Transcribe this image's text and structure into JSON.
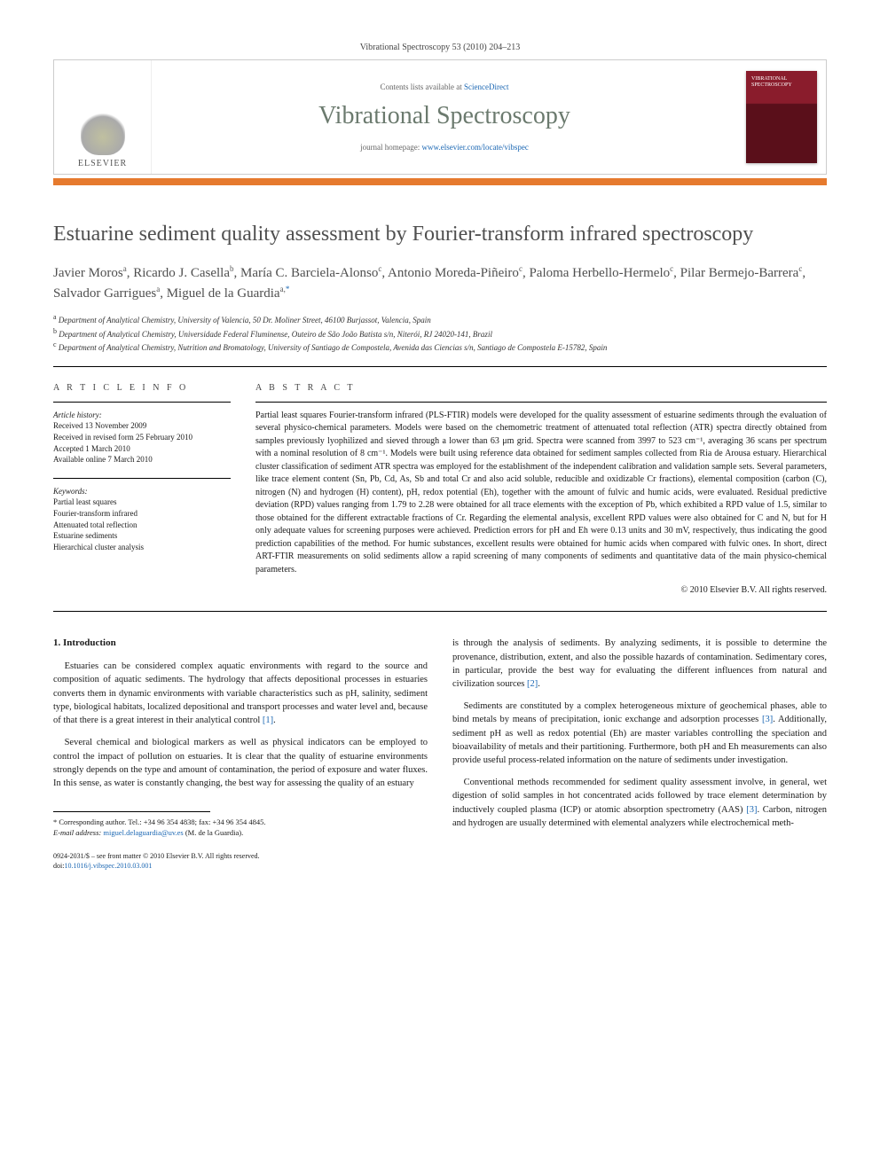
{
  "journal_header": "Vibrational Spectroscopy 53 (2010) 204–213",
  "masthead": {
    "elsevier_label": "ELSEVIER",
    "contents_prefix": "Contents lists available at ",
    "contents_link": "ScienceDirect",
    "journal_title": "Vibrational Spectroscopy",
    "homepage_prefix": "journal homepage: ",
    "homepage_link": "www.elsevier.com/locate/vibspec",
    "cover_text": "VIBRATIONAL SPECTROSCOPY"
  },
  "article_title": "Estuarine sediment quality assessment by Fourier-transform infrared spectroscopy",
  "authors_html": "Javier Moros<sup>a</sup>, Ricardo J. Casella<sup>b</sup>, María C. Barciela-Alonso<sup>c</sup>, Antonio Moreda-Piñeiro<sup>c</sup>, Paloma Herbello-Hermelo<sup>c</sup>, Pilar Bermejo-Barrera<sup>c</sup>, Salvador Garrigues<sup>a</sup>, Miguel de la Guardia<sup>a,</sup><sup class=\"corr\">*</sup>",
  "affiliations": {
    "a": "Department of Analytical Chemistry, University of Valencia, 50 Dr. Moliner Street, 46100 Burjassot, Valencia, Spain",
    "b": "Department of Analytical Chemistry, Universidade Federal Fluminense, Outeiro de São João Batista s/n, Niterói, RJ 24020-141, Brazil",
    "c": "Department of Analytical Chemistry, Nutrition and Bromatology, University of Santiago de Compostela, Avenida das Ciencias s/n, Santiago de Compostela E-15782, Spain"
  },
  "article_info": {
    "heading": "A R T I C L E   I N F O",
    "history_label": "Article history:",
    "history": [
      "Received 13 November 2009",
      "Received in revised form 25 February 2010",
      "Accepted 1 March 2010",
      "Available online 7 March 2010"
    ],
    "keywords_label": "Keywords:",
    "keywords": [
      "Partial least squares",
      "Fourier-transform infrared",
      "Attenuated total reflection",
      "Estuarine sediments",
      "Hierarchical cluster analysis"
    ]
  },
  "abstract": {
    "heading": "A B S T R A C T",
    "text": "Partial least squares Fourier-transform infrared (PLS-FTIR) models were developed for the quality assessment of estuarine sediments through the evaluation of several physico-chemical parameters. Models were based on the chemometric treatment of attenuated total reflection (ATR) spectra directly obtained from samples previously lyophilized and sieved through a lower than 63 μm grid. Spectra were scanned from 3997 to 523 cm⁻¹, averaging 36 scans per spectrum with a nominal resolution of 8 cm⁻¹. Models were built using reference data obtained for sediment samples collected from Ria de Arousa estuary. Hierarchical cluster classification of sediment ATR spectra was employed for the establishment of the independent calibration and validation sample sets. Several parameters, like trace element content (Sn, Pb, Cd, As, Sb and total Cr and also acid soluble, reducible and oxidizable Cr fractions), elemental composition (carbon (C), nitrogen (N) and hydrogen (H) content), pH, redox potential (Eh), together with the amount of fulvic and humic acids, were evaluated. Residual predictive deviation (RPD) values ranging from 1.79 to 2.28 were obtained for all trace elements with the exception of Pb, which exhibited a RPD value of 1.5, similar to those obtained for the different extractable fractions of Cr. Regarding the elemental analysis, excellent RPD values were also obtained for C and N, but for H only adequate values for screening purposes were achieved. Prediction errors for pH and Eh were 0.13 units and 30 mV, respectively, thus indicating the good prediction capabilities of the method. For humic substances, excellent results were obtained for humic acids when compared with fulvic ones. In short, direct ART-FTIR measurements on solid sediments allow a rapid screening of many components of sediments and quantitative data of the main physico-chemical parameters."
  },
  "copyright": "© 2010 Elsevier B.V. All rights reserved.",
  "intro": {
    "heading": "1. Introduction",
    "p1": "Estuaries can be considered complex aquatic environments with regard to the source and composition of aquatic sediments. The hydrology that affects depositional processes in estuaries converts them in dynamic environments with variable characteristics such as pH, salinity, sediment type, biological habitats, localized depositional and transport processes and water level and, because of that there is a great interest in their analytical control ",
    "p1_ref": "[1]",
    "p1_tail": ".",
    "p2": "Several chemical and biological markers as well as physical indicators can be employed to control the impact of pollution on estuaries. It is clear that the quality of estuarine environments strongly depends on the type and amount of contamination, the period of exposure and water fluxes. In this sense, as water is constantly changing, the best way for assessing the quality of an estuary",
    "p3": "is through the analysis of sediments. By analyzing sediments, it is possible to determine the provenance, distribution, extent, and also the possible hazards of contamination. Sedimentary cores, in particular, provide the best way for evaluating the different influences from natural and civilization sources ",
    "p3_ref": "[2]",
    "p3_tail": ".",
    "p4": "Sediments are constituted by a complex heterogeneous mixture of geochemical phases, able to bind metals by means of precipitation, ionic exchange and adsorption processes ",
    "p4_ref": "[3]",
    "p4_tail": ". Additionally, sediment pH as well as redox potential (Eh) are master variables controlling the speciation and bioavailability of metals and their partitioning. Furthermore, both pH and Eh measurements can also provide useful process-related information on the nature of sediments under investigation.",
    "p5": "Conventional methods recommended for sediment quality assessment involve, in general, wet digestion of solid samples in hot concentrated acids followed by trace element determination by inductively coupled plasma (ICP) or atomic absorption spectrometry (AAS) ",
    "p5_ref": "[3]",
    "p5_tail": ". Carbon, nitrogen and hydrogen are usually determined with elemental analyzers while electrochemical meth-"
  },
  "corr_note": {
    "line1_prefix": "* Corresponding author. Tel.: +34 96 354 4838; fax: +34 96 354 4845.",
    "line2_prefix": "E-mail address: ",
    "email": "miguel.delaguardia@uv.es",
    "line2_suffix": " (M. de la Guardia)."
  },
  "footer": {
    "line1": "0924-2031/$ – see front matter © 2010 Elsevier B.V. All rights reserved.",
    "doi_prefix": "doi:",
    "doi": "10.1016/j.vibspec.2010.03.001"
  }
}
